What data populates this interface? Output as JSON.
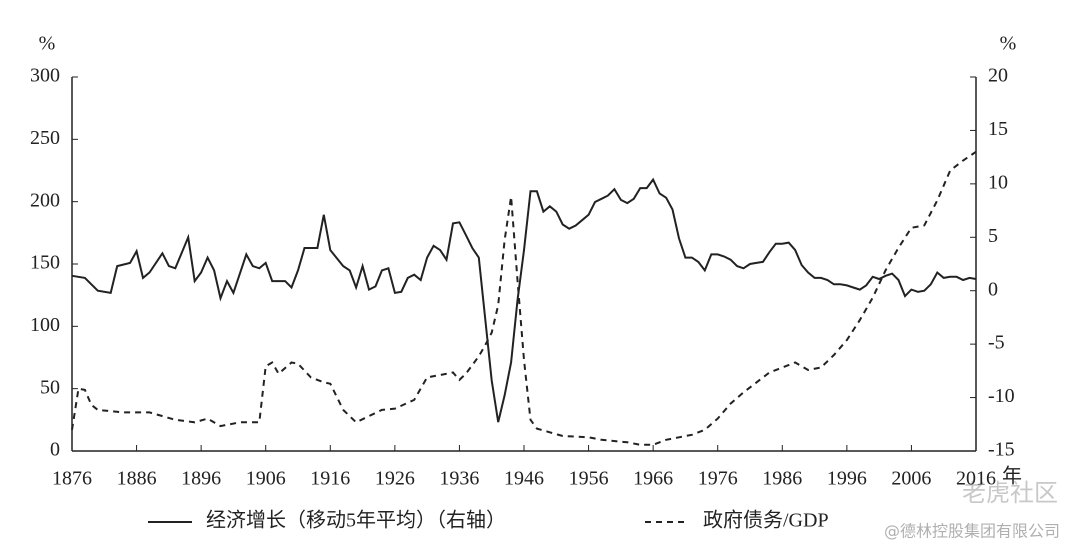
{
  "chart_data": {
    "type": "line",
    "y_unit_label": "%",
    "y2_unit_label": "%",
    "x_unit_label": "年",
    "xlim": [
      1876,
      2016
    ],
    "xticks": [
      1876,
      1886,
      1896,
      1906,
      1916,
      1926,
      1936,
      1946,
      1956,
      1966,
      1976,
      1986,
      1996,
      2006,
      2016
    ],
    "ylim": [
      0,
      300
    ],
    "yticks": [
      0,
      50,
      100,
      150,
      200,
      250,
      300
    ],
    "y2lim": [
      -15,
      20
    ],
    "y2ticks": [
      -15,
      -10,
      -5,
      0,
      5,
      10,
      15,
      20
    ],
    "series": [
      {
        "name": "经济增长（移动5年平均）（右轴）",
        "color": "#222222",
        "dash": "solid",
        "axis": "y2",
        "x": [
          1876,
          1878,
          1880,
          1882,
          1883,
          1885,
          1886,
          1887,
          1888,
          1890,
          1891,
          1892,
          1894,
          1895,
          1896,
          1897,
          1898,
          1899,
          1900,
          1901,
          1903,
          1904,
          1905,
          1906,
          1907,
          1909,
          1910,
          1911,
          1912,
          1914,
          1915,
          1916,
          1918,
          1919,
          1920,
          1921,
          1922,
          1923,
          1924,
          1925,
          1926,
          1927,
          1928,
          1929,
          1930,
          1931,
          1932,
          1933,
          1934,
          1935,
          1936,
          1937,
          1938,
          1939,
          1940,
          1941,
          1942,
          1943,
          1944,
          1945,
          1946,
          1947,
          1948,
          1949,
          1950,
          1951,
          1952,
          1953,
          1954,
          1955,
          1956,
          1957,
          1958,
          1959,
          1960,
          1961,
          1962,
          1963,
          1964,
          1965,
          1966,
          1967,
          1968,
          1969,
          1970,
          1971,
          1972,
          1973,
          1974,
          1975,
          1976,
          1977,
          1978,
          1979,
          1980,
          1981,
          1982,
          1983,
          1984,
          1985,
          1986,
          1987,
          1988,
          1989,
          1990,
          1991,
          1992,
          1993,
          1994,
          1995,
          1996,
          1997,
          1998,
          1999,
          2000,
          2001,
          2002,
          2003,
          2004,
          2005,
          2006,
          2007,
          2008,
          2009,
          2010,
          2011,
          2012,
          2013,
          2014,
          2015,
          2016
        ],
        "values": [
          1.4,
          1.2,
          0,
          -0.2,
          2.3,
          2.6,
          3.7,
          1.2,
          1.7,
          3.5,
          2.3,
          2.1,
          5,
          0.9,
          1.7,
          3.1,
          1.9,
          -0.7,
          0.9,
          -0.2,
          3.4,
          2.3,
          2.1,
          2.6,
          0.9,
          0.9,
          0.3,
          1.9,
          4,
          4,
          7.1,
          3.8,
          2.3,
          1.9,
          0.3,
          2.3,
          0.1,
          0.4,
          1.9,
          2.1,
          -0.2,
          -0.1,
          1.2,
          1.5,
          1,
          3.1,
          4.2,
          3.8,
          2.9,
          6.3,
          6.4,
          5.2,
          4,
          3.1,
          -2.7,
          -8.4,
          -12.3,
          -9.8,
          -6.7,
          -0.9,
          3.8,
          9.3,
          9.3,
          7.4,
          7.9,
          7.4,
          6.2,
          5.8,
          6.1,
          6.6,
          7.1,
          8.3,
          8.6,
          8.9,
          9.5,
          8.5,
          8.2,
          8.6,
          9.6,
          9.6,
          10.4,
          9.1,
          8.7,
          7.6,
          4.9,
          3.1,
          3.1,
          2.7,
          1.9,
          3.4,
          3.4,
          3.2,
          2.9,
          2.3,
          2.1,
          2.5,
          2.6,
          2.7,
          3.6,
          4.4,
          4.4,
          4.5,
          3.8,
          2.4,
          1.7,
          1.2,
          1.2,
          1,
          0.6,
          0.6,
          0.5,
          0.3,
          0.1,
          0.5,
          1.3,
          1.1,
          1.4,
          1.6,
          1,
          -0.5,
          0.1,
          -0.1,
          0,
          0.6,
          1.7,
          1.2,
          1.3,
          1.3,
          1,
          1.2,
          1.1
        ]
      },
      {
        "name": "政府债务/GDP",
        "color": "#222222",
        "dash": "dashed",
        "axis": "y",
        "x": [
          1876,
          1877,
          1878,
          1879,
          1880,
          1884,
          1888,
          1892,
          1895,
          1897,
          1899,
          1902,
          1905,
          1906,
          1907,
          1908,
          1910,
          1911,
          1913,
          1915,
          1916,
          1918,
          1920,
          1922,
          1924,
          1926,
          1929,
          1931,
          1933,
          1935,
          1936,
          1937,
          1939,
          1940,
          1941,
          1942,
          1943,
          1944,
          1945,
          1946,
          1947,
          1948,
          1950,
          1952,
          1956,
          1958,
          1962,
          1964,
          1966,
          1968,
          1970,
          1972,
          1974,
          1976,
          1978,
          1980,
          1982,
          1984,
          1986,
          1988,
          1990,
          1992,
          1994,
          1996,
          1998,
          2000,
          2002,
          2004,
          2006,
          2008,
          2010,
          2012,
          2014,
          2016
        ],
        "values": [
          17,
          50,
          49,
          37,
          33,
          31,
          31,
          25,
          23,
          26,
          20,
          23,
          23,
          68,
          71,
          62,
          71,
          70,
          59,
          55,
          54,
          33,
          23,
          28,
          33,
          34,
          41,
          59,
          61,
          63,
          57,
          62,
          76,
          85,
          95,
          117,
          169,
          204,
          137,
          73,
          25,
          18,
          15,
          12,
          11,
          9,
          7,
          5,
          5,
          9,
          11,
          13,
          17,
          26,
          38,
          47,
          55,
          63,
          67,
          71,
          65,
          67,
          77,
          89,
          105,
          123,
          145,
          163,
          179,
          181,
          201,
          225,
          233,
          240
        ]
      }
    ]
  },
  "watermark": "老虎社区",
  "credit": "@德林控股集团有限公司"
}
